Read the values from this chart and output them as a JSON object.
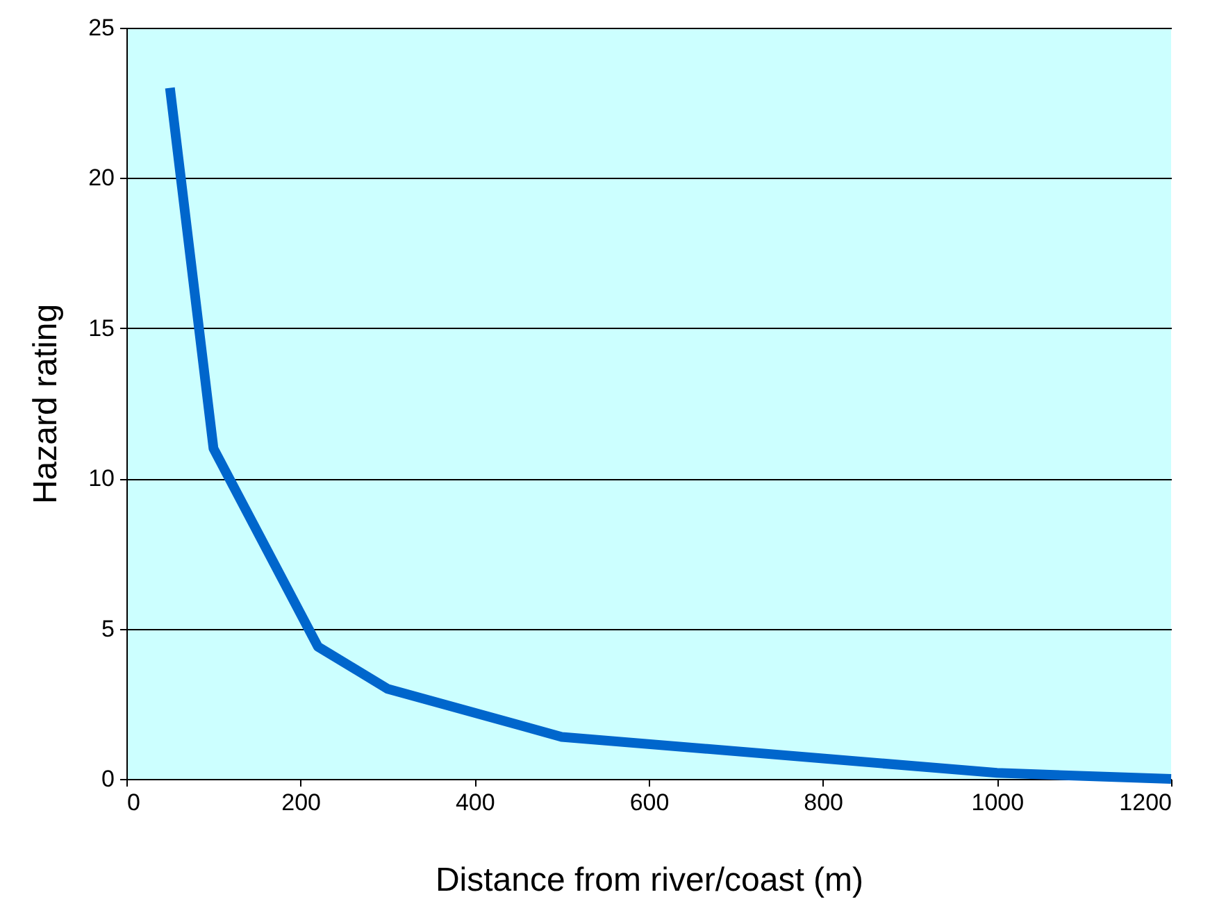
{
  "chart_data": {
    "type": "line",
    "xlabel": "Distance from river/coast (m)",
    "ylabel": "Hazard rating",
    "x": [
      50,
      100,
      220,
      300,
      500,
      1000,
      1200
    ],
    "series": [
      {
        "color": "#0066cc",
        "values": [
          23,
          11,
          4.4,
          3,
          1.4,
          0.2,
          0
        ]
      }
    ],
    "xlim": [
      0,
      1200
    ],
    "xticks": [
      0,
      200,
      400,
      600,
      800,
      1000,
      1200
    ],
    "ylim": [
      0,
      25
    ],
    "yticks": [
      0,
      5,
      10,
      15,
      20,
      25
    ],
    "grid": "y",
    "marker": "none",
    "line_style": "solid"
  }
}
